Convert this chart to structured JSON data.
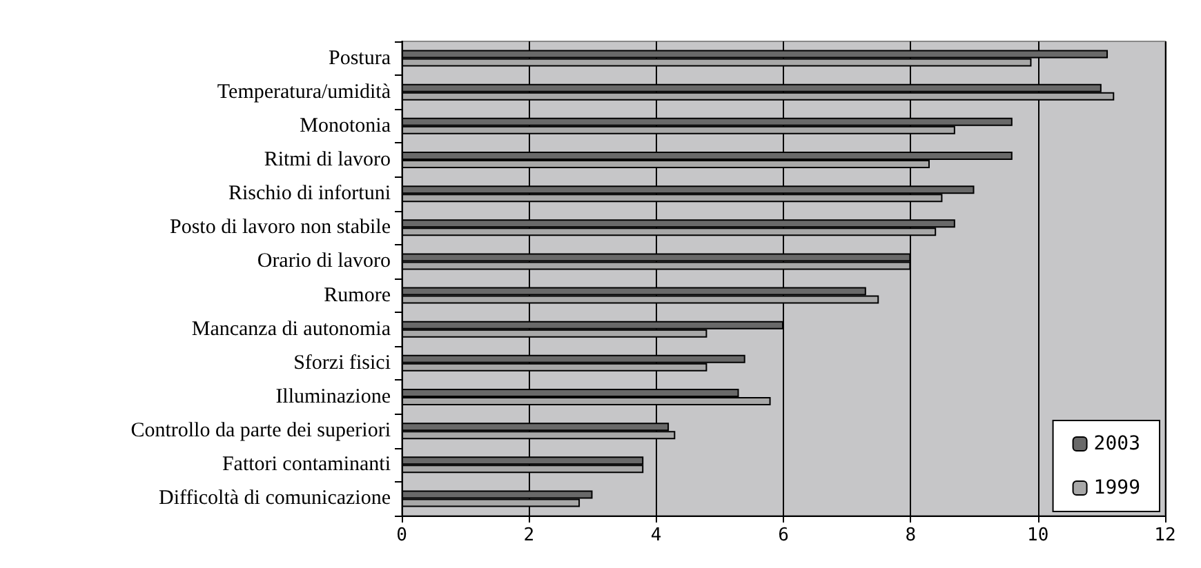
{
  "chart_data": {
    "type": "bar",
    "orientation": "horizontal",
    "categories": [
      "Postura",
      "Temperatura/umidità",
      "Monotonia",
      "Ritmi di lavoro",
      "Rischio di infortuni",
      "Posto di lavoro non stabile",
      "Orario di lavoro",
      "Rumore",
      "Mancanza di autonomia",
      "Sforzi fisici",
      "Illuminazione",
      "Controllo da parte dei superiori",
      "Fattori contaminanti",
      "Difficoltà di comunicazione"
    ],
    "series": [
      {
        "name": "2003",
        "color": "#696969",
        "values": [
          11.1,
          11.0,
          9.6,
          9.6,
          9.0,
          8.7,
          8.0,
          7.3,
          6.0,
          5.4,
          5.3,
          4.2,
          3.8,
          3.0
        ]
      },
      {
        "name": "1999",
        "color": "#a8a8a8",
        "values": [
          9.9,
          11.2,
          8.7,
          8.3,
          8.5,
          8.4,
          8.0,
          7.5,
          4.8,
          4.8,
          5.8,
          4.3,
          3.8,
          2.8
        ]
      }
    ],
    "xlim": [
      0,
      12
    ],
    "xticks": [
      0,
      2,
      4,
      6,
      8,
      10,
      12
    ],
    "grid": "x",
    "legend": "bottom right"
  }
}
